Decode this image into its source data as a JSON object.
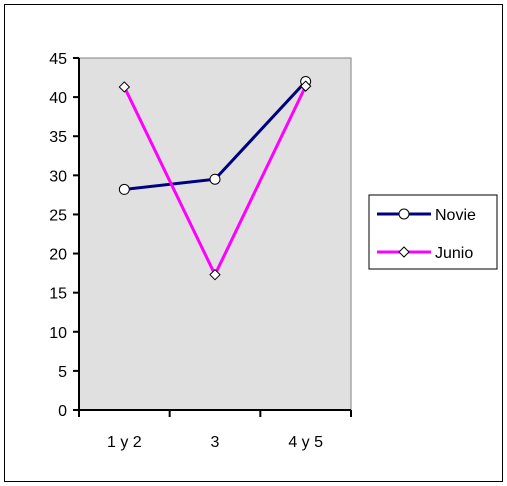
{
  "chart_data": {
    "type": "line",
    "title": "",
    "xlabel": "",
    "ylabel": "",
    "categories": [
      "1 y 2",
      "3",
      "4 y 5"
    ],
    "ylim": [
      0,
      45
    ],
    "yticks": [
      0,
      5,
      10,
      15,
      20,
      25,
      30,
      35,
      40,
      45
    ],
    "grid": false,
    "legend_position": "right",
    "plot_background": "#e0e0e0",
    "series": [
      {
        "name": "Novie",
        "values": [
          28.2,
          29.5,
          42.0
        ],
        "color": "#000080",
        "marker": "circle"
      },
      {
        "name": "Junio",
        "values": [
          41.3,
          17.3,
          41.4
        ],
        "color": "#ff00ff",
        "marker": "diamond"
      }
    ]
  }
}
